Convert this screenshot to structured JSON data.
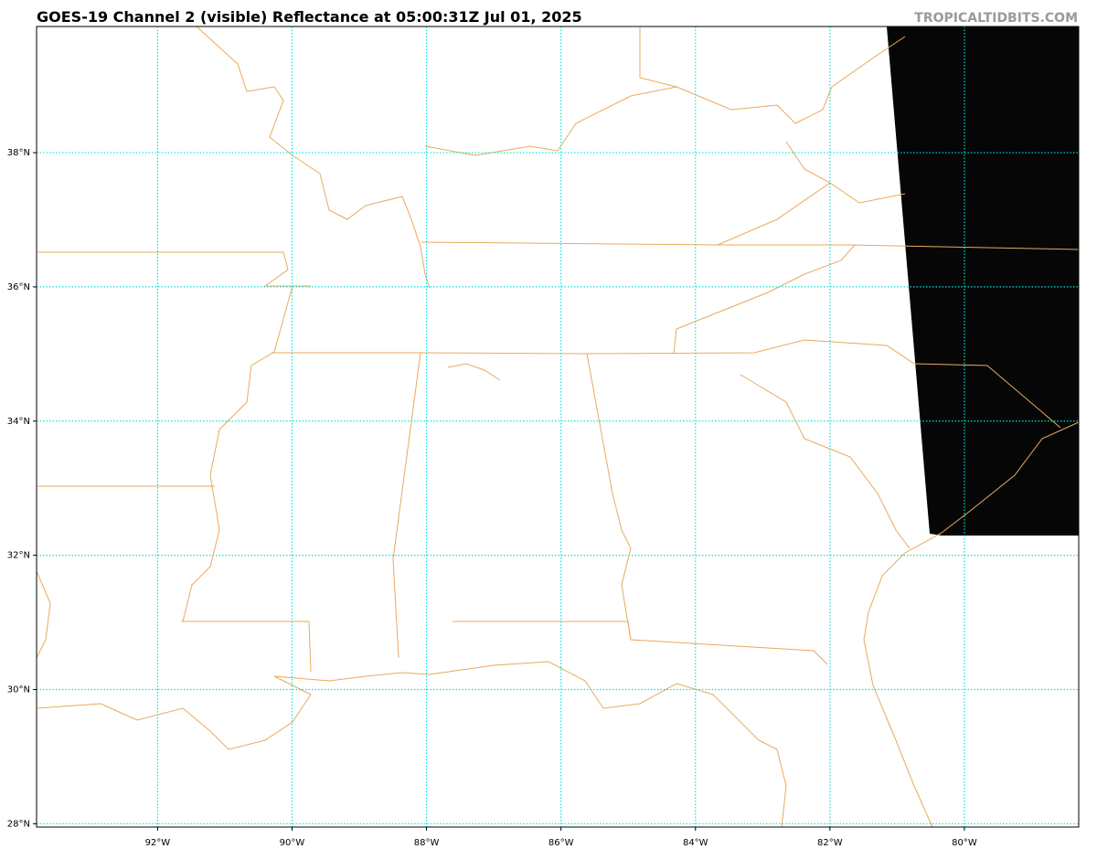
{
  "title": "GOES-19 Channel 2 (visible) Reflectance at 05:00:31Z Jul 01, 2025",
  "credit": "TROPICALTIDBITS.COM",
  "map": {
    "xlim": [
      -93.8,
      -78.3
    ],
    "ylim": [
      27.95,
      39.88
    ],
    "xticks": [
      {
        "value": -92,
        "label": "92°W"
      },
      {
        "value": -90,
        "label": "90°W"
      },
      {
        "value": -88,
        "label": "88°W"
      },
      {
        "value": -86,
        "label": "86°W"
      },
      {
        "value": -84,
        "label": "84°W"
      },
      {
        "value": -82,
        "label": "82°W"
      },
      {
        "value": -80,
        "label": "80°W"
      }
    ],
    "yticks": [
      {
        "value": 28,
        "label": "28°N"
      },
      {
        "value": 30,
        "label": "30°N"
      },
      {
        "value": 32,
        "label": "32°N"
      },
      {
        "value": 34,
        "label": "34°N"
      },
      {
        "value": 36,
        "label": "36°N"
      },
      {
        "value": 38,
        "label": "38°N"
      }
    ],
    "grid": true
  }
}
